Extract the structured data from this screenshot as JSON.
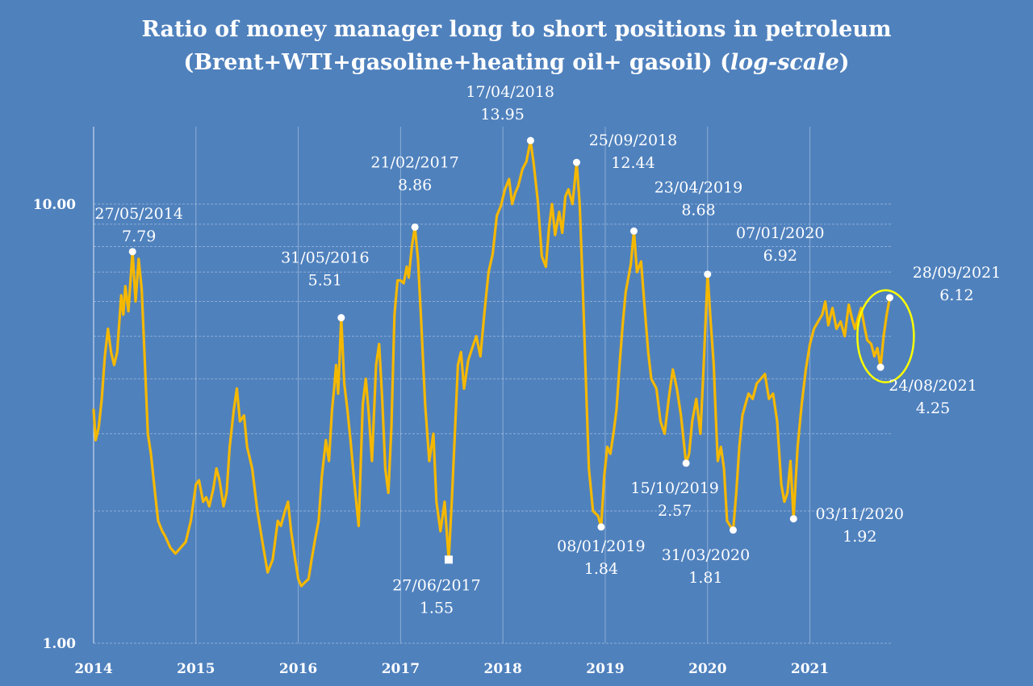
{
  "chart_data": {
    "type": "line",
    "title_line1": "Ratio of money manager long to short positions in petroleum",
    "title_line2_main": "(Brent+WTI+gasoline+heating oil+ gasoil) (",
    "title_line2_italic": "log-scale",
    "title_line2_end": ")",
    "xlabel": "",
    "ylabel": "",
    "y_scale": "log",
    "ylim": [
      1.0,
      15.0
    ],
    "xlim": [
      2014.0,
      2021.8
    ],
    "y_tick_labels": [
      {
        "value": 1.0,
        "label": "1.00"
      },
      {
        "value": 10.0,
        "label": "10.00"
      }
    ],
    "y_minor_gridlines": [
      2,
      3,
      4,
      5,
      6,
      7,
      8,
      9
    ],
    "x_tick_labels": [
      {
        "value": 2014,
        "label": "2014"
      },
      {
        "value": 2015,
        "label": "2015"
      },
      {
        "value": 2016,
        "label": "2016"
      },
      {
        "value": 2017,
        "label": "2017"
      },
      {
        "value": 2018,
        "label": "2018"
      },
      {
        "value": 2019,
        "label": "2019"
      },
      {
        "value": 2020,
        "label": "2020"
      },
      {
        "value": 2021,
        "label": "2021"
      }
    ],
    "grid": true,
    "legend": "none",
    "series": [
      {
        "line_color": "#f5b800",
        "points": [
          [
            2014.0,
            3.4
          ],
          [
            2014.02,
            2.9
          ],
          [
            2014.05,
            3.1
          ],
          [
            2014.08,
            3.6
          ],
          [
            2014.11,
            4.5
          ],
          [
            2014.14,
            5.2
          ],
          [
            2014.17,
            4.6
          ],
          [
            2014.2,
            4.3
          ],
          [
            2014.23,
            4.6
          ],
          [
            2014.27,
            6.2
          ],
          [
            2014.29,
            5.6
          ],
          [
            2014.31,
            6.5
          ],
          [
            2014.34,
            5.7
          ],
          [
            2014.38,
            7.79
          ],
          [
            2014.41,
            6.0
          ],
          [
            2014.44,
            7.5
          ],
          [
            2014.47,
            6.4
          ],
          [
            2014.5,
            4.4
          ],
          [
            2014.53,
            3.0
          ],
          [
            2014.56,
            2.7
          ],
          [
            2014.6,
            2.2
          ],
          [
            2014.63,
            1.9
          ],
          [
            2014.67,
            1.8
          ],
          [
            2014.7,
            1.75
          ],
          [
            2014.75,
            1.65
          ],
          [
            2014.8,
            1.6
          ],
          [
            2014.85,
            1.65
          ],
          [
            2014.9,
            1.7
          ],
          [
            2014.95,
            1.9
          ],
          [
            2015.0,
            2.3
          ],
          [
            2015.03,
            2.35
          ],
          [
            2015.07,
            2.1
          ],
          [
            2015.1,
            2.15
          ],
          [
            2015.13,
            2.05
          ],
          [
            2015.17,
            2.25
          ],
          [
            2015.2,
            2.5
          ],
          [
            2015.23,
            2.35
          ],
          [
            2015.27,
            2.05
          ],
          [
            2015.3,
            2.2
          ],
          [
            2015.33,
            2.8
          ],
          [
            2015.37,
            3.4
          ],
          [
            2015.4,
            3.8
          ],
          [
            2015.43,
            3.2
          ],
          [
            2015.47,
            3.3
          ],
          [
            2015.5,
            2.8
          ],
          [
            2015.55,
            2.5
          ],
          [
            2015.6,
            2.0
          ],
          [
            2015.65,
            1.7
          ],
          [
            2015.7,
            1.45
          ],
          [
            2015.75,
            1.55
          ],
          [
            2015.8,
            1.9
          ],
          [
            2015.83,
            1.85
          ],
          [
            2015.87,
            2.0
          ],
          [
            2015.9,
            2.1
          ],
          [
            2015.93,
            1.8
          ],
          [
            2015.97,
            1.55
          ],
          [
            2016.0,
            1.4
          ],
          [
            2016.03,
            1.35
          ],
          [
            2016.07,
            1.38
          ],
          [
            2016.1,
            1.4
          ],
          [
            2016.13,
            1.55
          ],
          [
            2016.17,
            1.75
          ],
          [
            2016.2,
            1.9
          ],
          [
            2016.23,
            2.4
          ],
          [
            2016.27,
            2.9
          ],
          [
            2016.3,
            2.6
          ],
          [
            2016.33,
            3.4
          ],
          [
            2016.35,
            3.8
          ],
          [
            2016.37,
            4.3
          ],
          [
            2016.39,
            3.7
          ],
          [
            2016.42,
            5.51
          ],
          [
            2016.45,
            3.9
          ],
          [
            2016.48,
            3.4
          ],
          [
            2016.51,
            2.9
          ],
          [
            2016.55,
            2.3
          ],
          [
            2016.59,
            1.85
          ],
          [
            2016.63,
            3.5
          ],
          [
            2016.66,
            4.0
          ],
          [
            2016.69,
            3.3
          ],
          [
            2016.72,
            2.6
          ],
          [
            2016.76,
            4.3
          ],
          [
            2016.79,
            4.8
          ],
          [
            2016.82,
            3.6
          ],
          [
            2016.85,
            2.5
          ],
          [
            2016.88,
            2.2
          ],
          [
            2016.91,
            3.1
          ],
          [
            2016.94,
            5.6
          ],
          [
            2016.97,
            6.7
          ],
          [
            2017.0,
            6.7
          ],
          [
            2017.03,
            6.6
          ],
          [
            2017.06,
            7.2
          ],
          [
            2017.08,
            6.8
          ],
          [
            2017.11,
            8.0
          ],
          [
            2017.14,
            8.86
          ],
          [
            2017.17,
            7.5
          ],
          [
            2017.2,
            5.5
          ],
          [
            2017.24,
            3.5
          ],
          [
            2017.28,
            2.6
          ],
          [
            2017.32,
            3.0
          ],
          [
            2017.35,
            2.1
          ],
          [
            2017.39,
            1.8
          ],
          [
            2017.43,
            2.1
          ],
          [
            2017.47,
            1.55
          ],
          [
            2017.5,
            2.1
          ],
          [
            2017.53,
            3.0
          ],
          [
            2017.56,
            4.3
          ],
          [
            2017.59,
            4.6
          ],
          [
            2017.62,
            3.8
          ],
          [
            2017.66,
            4.4
          ],
          [
            2017.7,
            4.7
          ],
          [
            2017.74,
            5.0
          ],
          [
            2017.78,
            4.5
          ],
          [
            2017.82,
            5.7
          ],
          [
            2017.86,
            7.0
          ],
          [
            2017.9,
            7.7
          ],
          [
            2017.94,
            9.4
          ],
          [
            2017.98,
            9.9
          ],
          [
            2018.02,
            10.8
          ],
          [
            2018.06,
            11.4
          ],
          [
            2018.09,
            10.0
          ],
          [
            2018.12,
            10.6
          ],
          [
            2018.15,
            11.0
          ],
          [
            2018.19,
            12.0
          ],
          [
            2018.23,
            12.5
          ],
          [
            2018.27,
            13.95
          ],
          [
            2018.3,
            12.4
          ],
          [
            2018.34,
            10.2
          ],
          [
            2018.38,
            7.6
          ],
          [
            2018.42,
            7.2
          ],
          [
            2018.45,
            8.8
          ],
          [
            2018.48,
            10.0
          ],
          [
            2018.51,
            8.5
          ],
          [
            2018.55,
            9.6
          ],
          [
            2018.58,
            8.6
          ],
          [
            2018.61,
            10.4
          ],
          [
            2018.64,
            10.8
          ],
          [
            2018.68,
            10.0
          ],
          [
            2018.72,
            12.44
          ],
          [
            2018.75,
            10.0
          ],
          [
            2018.78,
            6.5
          ],
          [
            2018.81,
            4.0
          ],
          [
            2018.84,
            2.5
          ],
          [
            2018.88,
            2.0
          ],
          [
            2018.93,
            1.95
          ],
          [
            2018.96,
            1.84
          ],
          [
            2018.99,
            2.4
          ],
          [
            2019.02,
            2.8
          ],
          [
            2019.05,
            2.7
          ],
          [
            2019.08,
            3.0
          ],
          [
            2019.11,
            3.4
          ],
          [
            2019.14,
            4.3
          ],
          [
            2019.17,
            5.3
          ],
          [
            2019.2,
            6.3
          ],
          [
            2019.25,
            7.3
          ],
          [
            2019.28,
            8.68
          ],
          [
            2019.31,
            7.0
          ],
          [
            2019.35,
            7.4
          ],
          [
            2019.38,
            6.0
          ],
          [
            2019.42,
            4.6
          ],
          [
            2019.45,
            4.0
          ],
          [
            2019.5,
            3.8
          ],
          [
            2019.54,
            3.2
          ],
          [
            2019.58,
            3.0
          ],
          [
            2019.62,
            3.6
          ],
          [
            2019.66,
            4.2
          ],
          [
            2019.7,
            3.8
          ],
          [
            2019.74,
            3.3
          ],
          [
            2019.79,
            2.57
          ],
          [
            2019.82,
            2.7
          ],
          [
            2019.85,
            3.2
          ],
          [
            2019.89,
            3.6
          ],
          [
            2019.93,
            3.0
          ],
          [
            2019.96,
            4.2
          ],
          [
            2020.0,
            6.92
          ],
          [
            2020.03,
            5.4
          ],
          [
            2020.06,
            4.3
          ],
          [
            2020.08,
            3.3
          ],
          [
            2020.1,
            2.6
          ],
          [
            2020.13,
            2.8
          ],
          [
            2020.16,
            2.5
          ],
          [
            2020.19,
            1.9
          ],
          [
            2020.22,
            1.85
          ],
          [
            2020.25,
            1.81
          ],
          [
            2020.28,
            2.2
          ],
          [
            2020.31,
            2.8
          ],
          [
            2020.34,
            3.3
          ],
          [
            2020.37,
            3.5
          ],
          [
            2020.4,
            3.7
          ],
          [
            2020.44,
            3.6
          ],
          [
            2020.48,
            3.9
          ],
          [
            2020.52,
            4.0
          ],
          [
            2020.56,
            4.1
          ],
          [
            2020.6,
            3.6
          ],
          [
            2020.64,
            3.7
          ],
          [
            2020.68,
            3.2
          ],
          [
            2020.72,
            2.3
          ],
          [
            2020.75,
            2.1
          ],
          [
            2020.78,
            2.2
          ],
          [
            2020.81,
            2.6
          ],
          [
            2020.84,
            1.92
          ],
          [
            2020.88,
            2.8
          ],
          [
            2020.92,
            3.5
          ],
          [
            2020.96,
            4.2
          ],
          [
            2021.0,
            4.8
          ],
          [
            2021.04,
            5.2
          ],
          [
            2021.08,
            5.4
          ],
          [
            2021.12,
            5.6
          ],
          [
            2021.15,
            6.0
          ],
          [
            2021.18,
            5.3
          ],
          [
            2021.22,
            5.8
          ],
          [
            2021.26,
            5.2
          ],
          [
            2021.3,
            5.4
          ],
          [
            2021.34,
            5.0
          ],
          [
            2021.38,
            5.9
          ],
          [
            2021.41,
            5.5
          ],
          [
            2021.44,
            5.2
          ],
          [
            2021.47,
            5.5
          ],
          [
            2021.5,
            5.8
          ],
          [
            2021.53,
            5.3
          ],
          [
            2021.56,
            4.9
          ],
          [
            2021.6,
            4.8
          ],
          [
            2021.63,
            4.5
          ],
          [
            2021.66,
            4.7
          ],
          [
            2021.69,
            4.25
          ],
          [
            2021.72,
            5.0
          ],
          [
            2021.75,
            5.6
          ],
          [
            2021.78,
            6.12
          ]
        ]
      }
    ],
    "annotations": [
      {
        "x": 2014.38,
        "y": 7.79,
        "date": "27/05/2014",
        "value": "7.79",
        "marker": "circle",
        "ldx": 8,
        "ldy": -33,
        "anchor": "middle"
      },
      {
        "x": 2016.42,
        "y": 5.51,
        "date": "31/05/2016",
        "value": "5.51",
        "marker": "circle",
        "ldx": -20,
        "ldy": -60,
        "anchor": "middle"
      },
      {
        "x": 2017.14,
        "y": 8.86,
        "date": "21/02/2017",
        "value": "8.86",
        "marker": "circle",
        "ldx": 0,
        "ldy": -66,
        "anchor": "middle"
      },
      {
        "x": 2017.47,
        "y": 1.55,
        "date": "27/06/2017",
        "value": "1.55",
        "marker": "square",
        "ldx": -15,
        "ldy": 46,
        "anchor": "middle"
      },
      {
        "x": 2018.27,
        "y": 13.95,
        "date": "17/04/2018",
        "value": "13.95",
        "marker": "circle",
        "ldx": -80,
        "ldy": -46,
        "anchor": "start"
      },
      {
        "x": 2018.72,
        "y": 12.44,
        "date": "25/09/2018",
        "value": "12.44",
        "marker": "circle",
        "ldx": 70,
        "ldy": -13,
        "anchor": "middle"
      },
      {
        "x": 2018.96,
        "y": 1.84,
        "date": "08/01/2019",
        "value": "1.84",
        "marker": "circle",
        "ldx": 0,
        "ldy": 38,
        "anchor": "middle"
      },
      {
        "x": 2019.28,
        "y": 8.68,
        "date": "23/04/2019",
        "value": "8.68",
        "marker": "circle",
        "ldx": 80,
        "ldy": -40,
        "anchor": "middle"
      },
      {
        "x": 2019.79,
        "y": 2.57,
        "date": "15/10/2019",
        "value": "2.57",
        "marker": "circle",
        "ldx": -14,
        "ldy": 45,
        "anchor": "middle"
      },
      {
        "x": 2020.0,
        "y": 6.92,
        "date": "07/01/2020",
        "value": "6.92",
        "marker": "circle",
        "ldx": 90,
        "ldy": -37,
        "anchor": "middle"
      },
      {
        "x": 2020.25,
        "y": 1.81,
        "date": "31/03/2020",
        "value": "1.81",
        "marker": "circle",
        "ldx": -34,
        "ldy": 45,
        "anchor": "middle"
      },
      {
        "x": 2020.84,
        "y": 1.92,
        "date": "03/11/2020",
        "value": "1.92",
        "marker": "circle",
        "ldx": 82,
        "ldy": 8,
        "anchor": "middle"
      },
      {
        "x": 2021.69,
        "y": 4.25,
        "date": "24/08/2021",
        "value": "4.25",
        "marker": "circle",
        "ldx": 65,
        "ldy": 37,
        "anchor": "middle"
      },
      {
        "x": 2021.78,
        "y": 6.12,
        "date": "28/09/2021",
        "value": "6.12",
        "marker": "circle",
        "ldx": 83,
        "ldy": -17,
        "anchor": "middle"
      }
    ],
    "highlight_ellipse": {
      "x": 2021.74,
      "y": 5.0,
      "color": "#ffff00"
    }
  }
}
